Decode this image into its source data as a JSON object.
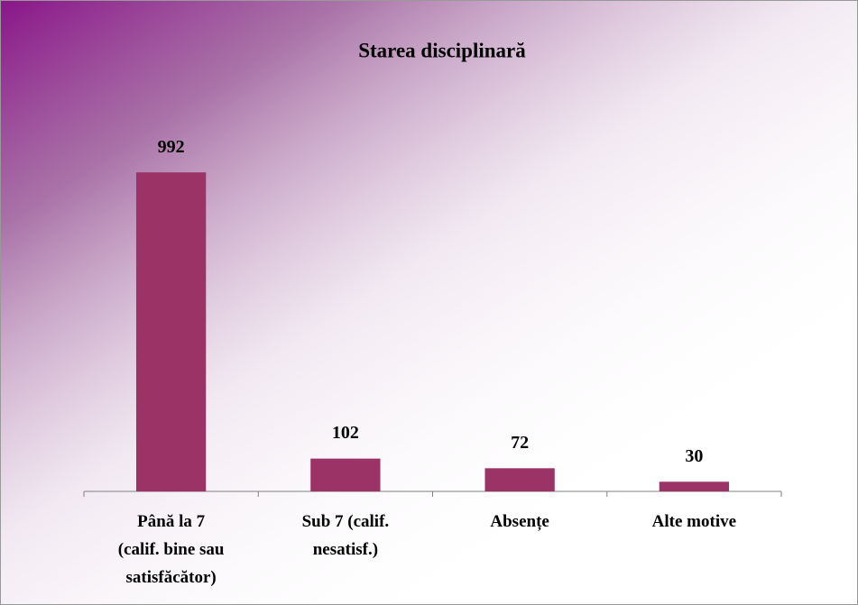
{
  "chart_data": {
    "type": "bar",
    "title": "Starea disciplinară",
    "categories": [
      "Până la 7\n(calif. bine sau\nsatisfăcător)",
      "Sub 7 (calif.\nnesatisf.)",
      "Absențe",
      "Alte motive"
    ],
    "values": [
      992,
      102,
      72,
      30
    ],
    "color": "#9b3366",
    "ylim": [
      0,
      1200
    ]
  }
}
